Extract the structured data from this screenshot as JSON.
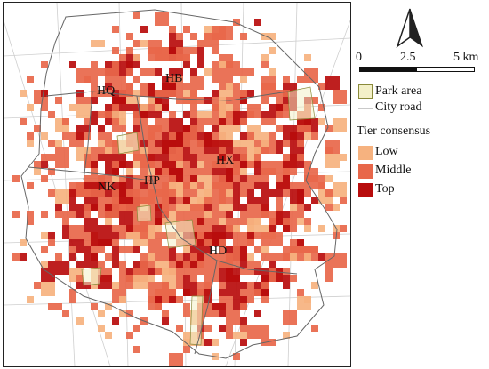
{
  "map": {
    "district_labels": [
      "HQ",
      "HB",
      "HX",
      "NK",
      "HP",
      "HD"
    ]
  },
  "north_arrow": {
    "icon": "north-arrow-icon"
  },
  "scale_bar": {
    "ticks": [
      "0",
      "2.5",
      "5 km"
    ]
  },
  "legend": {
    "park_label": "Park area",
    "road_label": "City road",
    "tier_title": "Tier consensus",
    "tiers": [
      {
        "label": "Low",
        "color": "#f6b27f"
      },
      {
        "label": "Middle",
        "color": "#e8674a"
      },
      {
        "label": "Top",
        "color": "#b80c0c"
      }
    ],
    "park_color": "#f3f0c8",
    "road_color": "#c9c9c9"
  }
}
